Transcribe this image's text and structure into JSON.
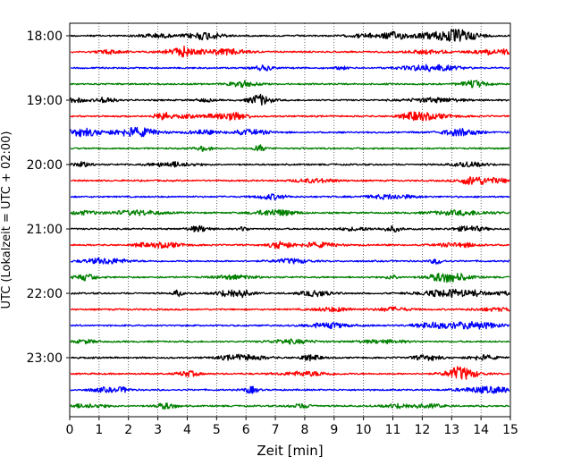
{
  "chart_data": {
    "type": "line",
    "title": "",
    "xlabel": "Zeit  [min]",
    "ylabel": "UTC (Lokalzeit = UTC + 02:00)",
    "xlim": [
      0,
      15
    ],
    "x_ticks": [
      "0",
      "1",
      "2",
      "3",
      "4",
      "5",
      "6",
      "7",
      "8",
      "9",
      "10",
      "11",
      "12",
      "13",
      "14",
      "15"
    ],
    "y_tick_labels": [
      "18:00",
      "19:00",
      "20:00",
      "21:00",
      "22:00",
      "23:00"
    ],
    "grid": "vertical dotted lines at each minute",
    "trace_colors": [
      "#000000",
      "#ff0000",
      "#0000ff",
      "#008000"
    ],
    "traces": [
      {
        "start": "18:00",
        "color": "#000000"
      },
      {
        "start": "18:15",
        "color": "#ff0000"
      },
      {
        "start": "18:30",
        "color": "#0000ff"
      },
      {
        "start": "18:45",
        "color": "#008000"
      },
      {
        "start": "19:00",
        "color": "#000000"
      },
      {
        "start": "19:15",
        "color": "#ff0000"
      },
      {
        "start": "19:30",
        "color": "#0000ff"
      },
      {
        "start": "19:45",
        "color": "#008000"
      },
      {
        "start": "20:00",
        "color": "#000000"
      },
      {
        "start": "20:15",
        "color": "#ff0000"
      },
      {
        "start": "20:30",
        "color": "#0000ff"
      },
      {
        "start": "20:45",
        "color": "#008000"
      },
      {
        "start": "21:00",
        "color": "#000000"
      },
      {
        "start": "21:15",
        "color": "#ff0000"
      },
      {
        "start": "21:30",
        "color": "#0000ff"
      },
      {
        "start": "21:45",
        "color": "#008000"
      },
      {
        "start": "22:00",
        "color": "#000000"
      },
      {
        "start": "22:15",
        "color": "#ff0000"
      },
      {
        "start": "22:30",
        "color": "#0000ff"
      },
      {
        "start": "22:45",
        "color": "#008000"
      },
      {
        "start": "23:00",
        "color": "#000000"
      },
      {
        "start": "23:15",
        "color": "#ff0000"
      },
      {
        "start": "23:30",
        "color": "#0000ff"
      },
      {
        "start": "23:45",
        "color": "#008000"
      }
    ]
  }
}
